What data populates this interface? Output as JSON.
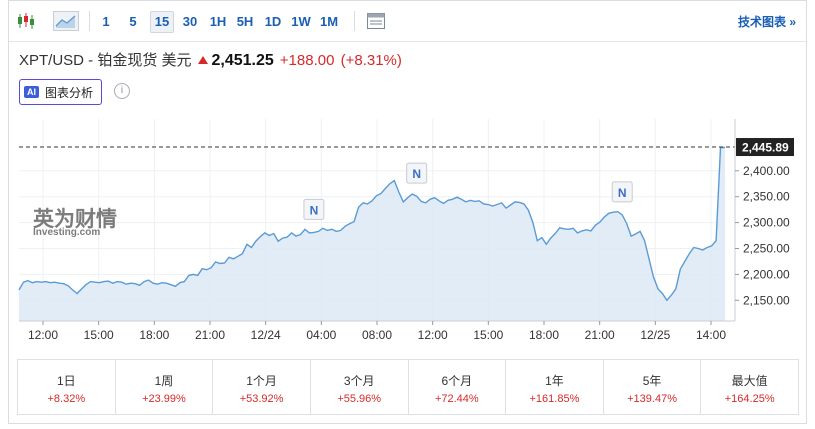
{
  "toolbar": {
    "timeframes": [
      "1",
      "5",
      "15",
      "30",
      "1H",
      "5H",
      "1D",
      "1W",
      "1M"
    ],
    "active_timeframe": "15",
    "tech_chart_link": "技术图表 »"
  },
  "header": {
    "name": "XPT/USD - 铂金现货 美元",
    "price": "2,451.25",
    "change": "+188.00",
    "change_pct": "(+8.31%)",
    "ai_badge": "AI",
    "ai_button": "图表分析",
    "info_icon": "i"
  },
  "watermark": {
    "cn": "英为财情",
    "en": "Investing.com"
  },
  "colors": {
    "line": "#5b9bd5",
    "fill": "#dde9f5",
    "positive": "#d62a2a",
    "link": "#1a5fb4"
  },
  "chart_data": {
    "type": "area",
    "x_ticks": [
      "12:00",
      "15:00",
      "18:00",
      "21:00",
      "12/24",
      "04:00",
      "08:00",
      "12:00",
      "15:00",
      "18:00",
      "21:00",
      "12/25",
      "14:00"
    ],
    "y_ticks": [
      "2,150.00",
      "2,200.00",
      "2,250.00",
      "2,300.00",
      "2,350.00",
      "2,400.00"
    ],
    "y_tick_values": [
      2150,
      2200,
      2250,
      2300,
      2350,
      2400
    ],
    "ylim": [
      2110,
      2500
    ],
    "last_price_label": "2,445.89",
    "last_price": 2445.89,
    "news_markers": [
      {
        "label": "N",
        "x": 0.42
      },
      {
        "label": "N",
        "x": 0.562
      },
      {
        "label": "N",
        "x": 0.853
      }
    ],
    "values": [
      2170,
      2185,
      2188,
      2184,
      2186,
      2185,
      2186,
      2184,
      2185,
      2183,
      2182,
      2178,
      2170,
      2163,
      2172,
      2180,
      2186,
      2185,
      2184,
      2186,
      2187,
      2183,
      2186,
      2185,
      2181,
      2183,
      2182,
      2179,
      2186,
      2189,
      2183,
      2181,
      2184,
      2183,
      2180,
      2177,
      2184,
      2186,
      2198,
      2200,
      2198,
      2211,
      2209,
      2213,
      2224,
      2221,
      2222,
      2233,
      2230,
      2235,
      2240,
      2258,
      2252,
      2264,
      2273,
      2280,
      2275,
      2279,
      2264,
      2270,
      2272,
      2280,
      2274,
      2277,
      2287,
      2280,
      2281,
      2283,
      2289,
      2285,
      2287,
      2283,
      2285,
      2293,
      2298,
      2302,
      2330,
      2338,
      2336,
      2342,
      2352,
      2356,
      2366,
      2375,
      2381,
      2359,
      2340,
      2348,
      2355,
      2351,
      2341,
      2338,
      2345,
      2348,
      2342,
      2337,
      2343,
      2345,
      2349,
      2345,
      2340,
      2343,
      2341,
      2342,
      2336,
      2335,
      2332,
      2335,
      2338,
      2328,
      2334,
      2340,
      2339,
      2336,
      2324,
      2300,
      2265,
      2271,
      2258,
      2270,
      2279,
      2290,
      2288,
      2287,
      2289,
      2280,
      2284,
      2286,
      2284,
      2295,
      2301,
      2311,
      2318,
      2320,
      2321,
      2315,
      2298,
      2274,
      2278,
      2283,
      2265,
      2230,
      2195,
      2172,
      2163,
      2150,
      2160,
      2172,
      2210,
      2225,
      2240,
      2252,
      2250,
      2247,
      2252,
      2255,
      2265,
      2445,
      2445
    ]
  },
  "performance": [
    {
      "label": "1日",
      "value": "+8.32%"
    },
    {
      "label": "1周",
      "value": "+23.99%"
    },
    {
      "label": "1个月",
      "value": "+53.92%"
    },
    {
      "label": "3个月",
      "value": "+55.96%"
    },
    {
      "label": "6个月",
      "value": "+72.44%"
    },
    {
      "label": "1年",
      "value": "+161.85%"
    },
    {
      "label": "5年",
      "value": "+139.47%"
    },
    {
      "label": "最大值",
      "value": "+164.25%"
    }
  ]
}
